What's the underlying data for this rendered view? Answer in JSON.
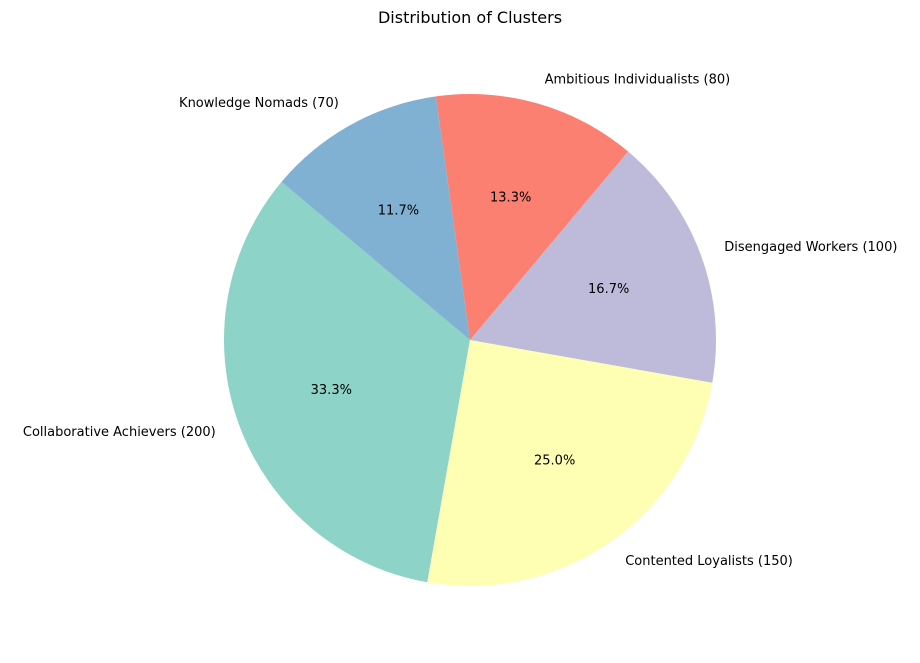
{
  "chart_data": {
    "type": "pie",
    "title": "Distribution of Clusters",
    "categories": [
      "Collaborative Achievers (200)",
      "Contented Loyalists (150)",
      "Disengaged Workers (100)",
      "Ambitious Individualists (80)",
      "Knowledge Nomads (70)"
    ],
    "values": [
      200,
      150,
      100,
      80,
      70
    ],
    "percent_labels": [
      "33.3%",
      "25.0%",
      "16.7%",
      "13.3%",
      "11.7%"
    ],
    "colors": [
      "#8dd3c7",
      "#ffffb3",
      "#bebada",
      "#fb8072",
      "#80b1d3"
    ],
    "start_angle_deg": 140,
    "direction": "counterclockwise",
    "legend": "none"
  }
}
